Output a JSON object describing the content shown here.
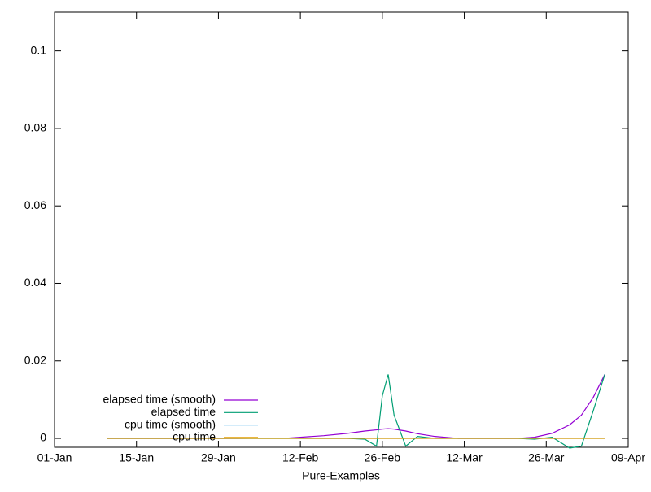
{
  "chart_data": {
    "type": "line",
    "xlabel": "Pure-Examples",
    "x": [
      "10-Jan",
      "20-Jan",
      "01-Feb",
      "10-Feb",
      "16-Feb",
      "20-Feb",
      "23-Feb",
      "25-Feb",
      "26-Feb",
      "27-Feb",
      "28-Feb",
      "02-Mar",
      "04-Mar",
      "07-Mar",
      "11-Mar",
      "16-Mar",
      "21-Mar",
      "24-Mar",
      "27-Mar",
      "30-Mar",
      "01-Apr",
      "03-Apr",
      "05-Apr"
    ],
    "series": [
      {
        "name": "elapsed time (smooth)",
        "color": "#9400d3",
        "values": [
          0,
          0,
          0,
          0.0001,
          0.0007,
          0.0013,
          0.0019,
          0.0022,
          0.0024,
          0.0025,
          0.0024,
          0.0019,
          0.0012,
          0.0005,
          0,
          0,
          0,
          0.0003,
          0.0013,
          0.0035,
          0.006,
          0.0105,
          0.0165
        ]
      },
      {
        "name": "elapsed time",
        "color": "#009e73",
        "values": [
          0,
          0,
          0,
          0,
          0,
          0,
          -0.0002,
          -0.002,
          0.011,
          0.0165,
          0.006,
          -0.002,
          0.0005,
          0,
          0,
          0,
          0,
          -0.0002,
          0.0003,
          -0.0025,
          -0.002,
          0.007,
          0.0165
        ]
      },
      {
        "name": "cpu time (smooth)",
        "color": "#56b4e9",
        "values": [
          0,
          0,
          0,
          0,
          0,
          0,
          0,
          0,
          0,
          0,
          0,
          0,
          0,
          0,
          0,
          0,
          0,
          0,
          0,
          0,
          0,
          0,
          0
        ]
      },
      {
        "name": "cpu time",
        "color": "#e69f00",
        "values": [
          0,
          0,
          0,
          0,
          0,
          0,
          0,
          0,
          0,
          0,
          0,
          0,
          0,
          0,
          0,
          0,
          0,
          0,
          0,
          0,
          0,
          0,
          0
        ]
      }
    ],
    "xlim": [
      "01-Jan",
      "09-Apr"
    ],
    "xticks": [
      "01-Jan",
      "15-Jan",
      "29-Jan",
      "12-Feb",
      "26-Feb",
      "12-Mar",
      "26-Mar",
      "09-Apr"
    ],
    "ylim": [
      -0.0023,
      0.11
    ],
    "yticks": [
      0,
      0.02,
      0.04,
      0.06,
      0.08,
      0.1
    ],
    "legend": "bottom-left"
  }
}
